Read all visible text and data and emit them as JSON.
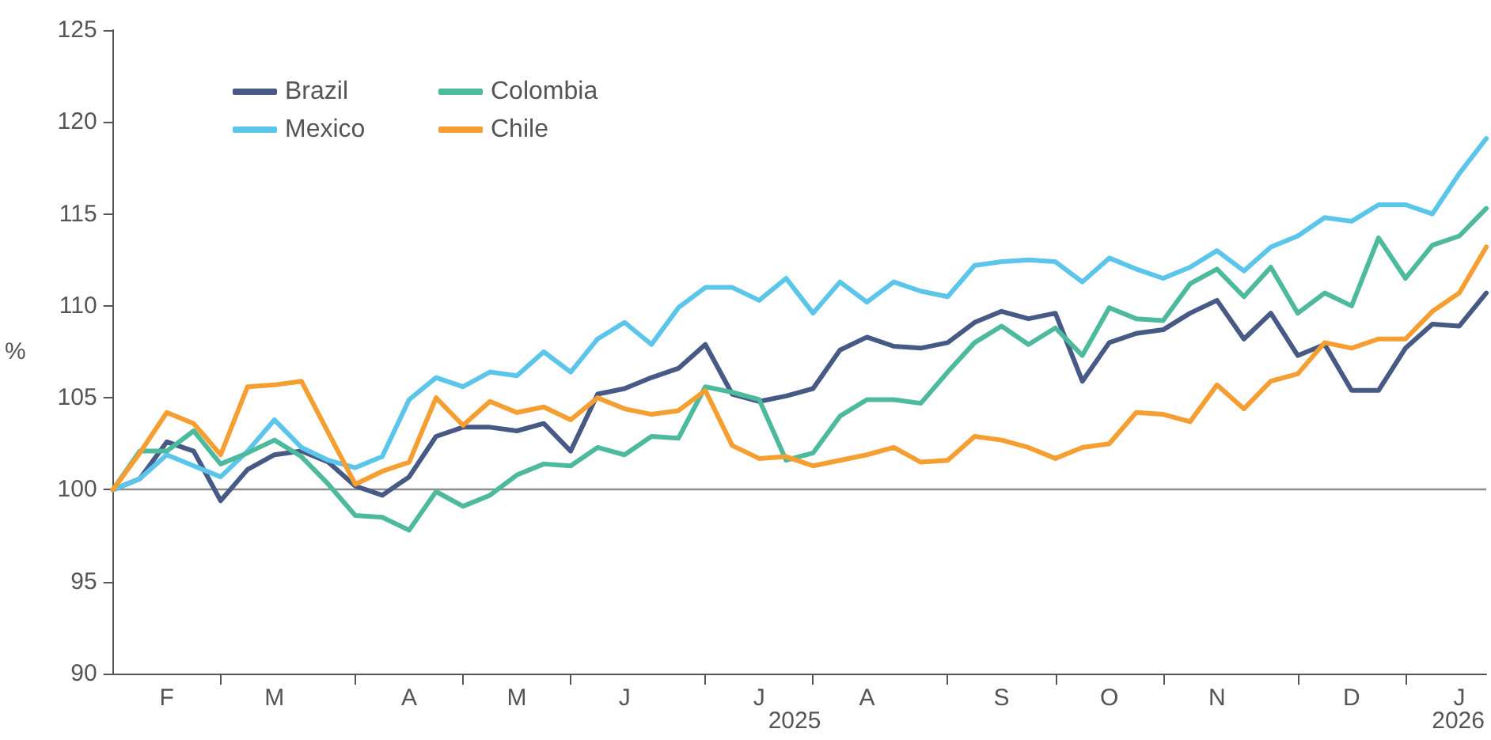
{
  "chart_data": {
    "type": "line",
    "ylabel": "%",
    "categories": [
      null,
      null,
      "F",
      null,
      null,
      null,
      "M",
      null,
      null,
      null,
      null,
      "A",
      null,
      null,
      null,
      "M",
      null,
      null,
      null,
      "J",
      null,
      null,
      null,
      null,
      "J",
      null,
      null,
      null,
      "A",
      null,
      null,
      null,
      null,
      "S",
      null,
      null,
      null,
      "O",
      null,
      null,
      null,
      "N",
      null,
      null,
      null,
      null,
      "D",
      null,
      null,
      null,
      "J",
      null
    ],
    "series": [
      {
        "name": "Brazil",
        "color": "#465a85",
        "values": [
          100,
          100.6,
          102.6,
          102.1,
          99.4,
          101.1,
          101.9,
          102.1,
          101.5,
          100.2,
          99.7,
          100.7,
          102.9,
          103.4,
          103.4,
          103.2,
          103.6,
          102.1,
          105.2,
          105.5,
          106.1,
          106.6,
          107.9,
          105.2,
          104.8,
          105.1,
          105.5,
          107.6,
          108.3,
          107.8,
          107.7,
          108.0,
          109.1,
          109.7,
          109.3,
          109.6,
          105.9,
          108.0,
          108.5,
          108.7,
          109.6,
          110.3,
          108.2,
          109.6,
          107.3,
          107.9,
          105.4,
          105.4,
          107.7,
          109.0,
          108.9,
          110.7
        ]
      },
      {
        "name": "Mexico",
        "color": "#5bc5ea",
        "values": [
          100,
          100.6,
          101.9,
          101.3,
          100.7,
          102.1,
          103.8,
          102.3,
          101.6,
          101.2,
          101.8,
          104.9,
          106.1,
          105.6,
          106.4,
          106.2,
          107.5,
          106.4,
          108.2,
          109.1,
          107.9,
          109.9,
          111.0,
          111.0,
          110.3,
          111.5,
          109.6,
          111.3,
          110.2,
          111.3,
          110.8,
          110.5,
          112.2,
          112.4,
          112.5,
          112.4,
          111.3,
          112.6,
          112.0,
          111.5,
          112.1,
          113.0,
          111.9,
          113.2,
          113.8,
          114.8,
          114.6,
          115.5,
          115.5,
          115.0,
          117.2,
          119.1
        ]
      },
      {
        "name": "Colombia",
        "color": "#4dba9e",
        "values": [
          100,
          102.1,
          102.1,
          103.2,
          101.4,
          102.0,
          102.7,
          101.8,
          100.3,
          98.6,
          98.5,
          97.8,
          99.9,
          99.1,
          99.7,
          100.8,
          101.4,
          101.3,
          102.3,
          101.9,
          102.9,
          102.8,
          105.6,
          105.3,
          104.9,
          101.6,
          102.0,
          104.0,
          104.9,
          104.9,
          104.7,
          106.4,
          108.0,
          108.9,
          107.9,
          108.8,
          107.3,
          109.9,
          109.3,
          109.2,
          111.2,
          112.0,
          110.5,
          112.1,
          109.6,
          110.7,
          110.0,
          113.7,
          111.5,
          113.3,
          113.8,
          115.3
        ]
      },
      {
        "name": "Chile",
        "color": "#f59e32",
        "values": [
          100,
          102.0,
          104.2,
          103.6,
          101.9,
          105.6,
          105.7,
          105.9,
          103.1,
          100.3,
          101.0,
          101.5,
          105.0,
          103.5,
          104.8,
          104.2,
          104.5,
          103.8,
          105.0,
          104.4,
          104.1,
          104.3,
          105.4,
          102.4,
          101.7,
          101.8,
          101.3,
          101.6,
          101.9,
          102.3,
          101.5,
          101.6,
          102.9,
          102.7,
          102.3,
          101.7,
          102.3,
          102.5,
          104.2,
          104.1,
          103.7,
          105.7,
          104.4,
          105.9,
          106.3,
          108.0,
          107.7,
          108.2,
          108.2,
          109.7,
          110.7,
          113.2
        ]
      }
    ],
    "ylim": [
      90,
      125
    ],
    "yticks": [
      90,
      95,
      100,
      105,
      110,
      115,
      120,
      125
    ],
    "ref_lines": [
      {
        "axis": "y",
        "value": 100,
        "color": "#8c8c8c"
      }
    ],
    "annotations": [
      "2025",
      "2026"
    ],
    "grid": false,
    "legend": "top left",
    "marker": "none",
    "line_style": "solid"
  }
}
